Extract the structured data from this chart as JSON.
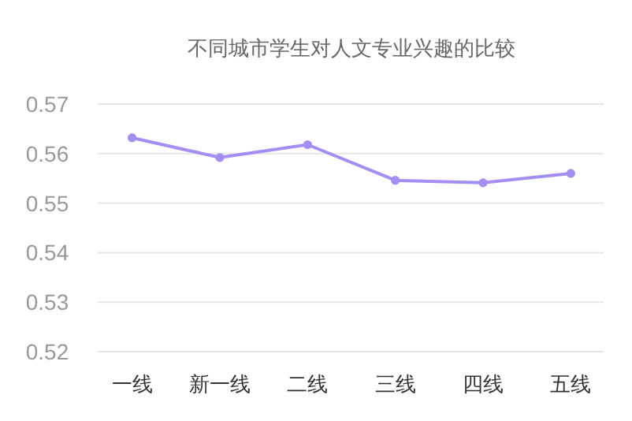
{
  "chart_data": {
    "type": "line",
    "title": "不同城市学生对人文专业兴趣的比较",
    "categories": [
      "一线",
      "新一线",
      "二线",
      "三线",
      "四线",
      "五线"
    ],
    "series": [
      {
        "color": "#a48ef2",
        "values": [
          0.5632,
          0.5592,
          0.5618,
          0.5546,
          0.5541,
          0.556
        ]
      }
    ],
    "ylim": [
      0.52,
      0.57
    ],
    "yticks": [
      0.52,
      0.53,
      0.54,
      0.55,
      0.56,
      0.57
    ],
    "grid": "y",
    "marker": "circle"
  }
}
